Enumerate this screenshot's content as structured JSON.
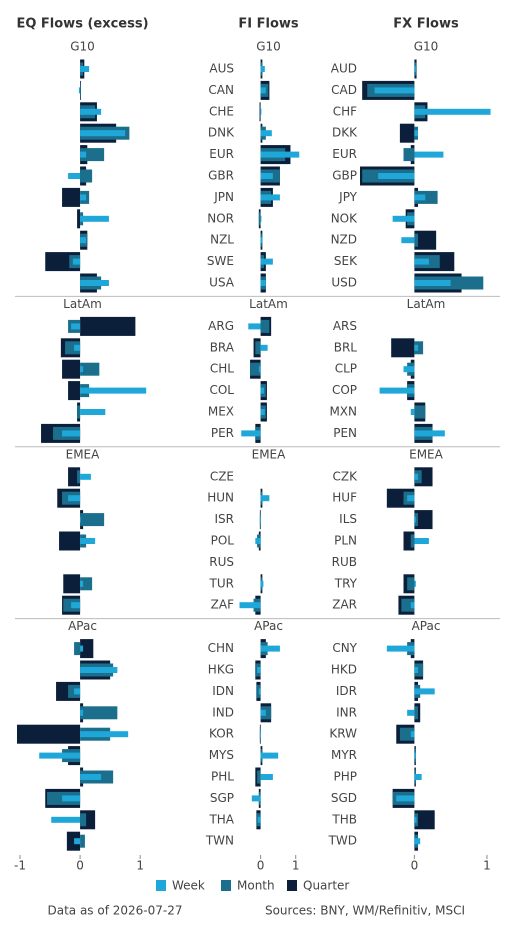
{
  "chart_data": [
    {
      "type": "bar",
      "title": "EQ Flows (excess)",
      "xlim": [
        -1.05,
        1.13
      ],
      "xticks": [
        -1,
        0,
        1
      ],
      "groups": [
        {
          "name": "G10",
          "series": [
            {
              "values": [
                0.15,
                -0.02,
                0.35,
                0.75,
                0.1,
                -0.2,
                0.1,
                0.48,
                0.1,
                -0.12,
                0.48
              ]
            },
            {
              "values": [
                0.05,
                0,
                0.25,
                0.82,
                0.4,
                0.2,
                0.15,
                0.05,
                0.12,
                -0.18,
                0.35
              ]
            },
            {
              "values": [
                0.07,
                0,
                0.28,
                0.6,
                0.12,
                0.1,
                -0.3,
                -0.05,
                0.12,
                -0.58,
                0.28
              ]
            }
          ]
        },
        {
          "name": "LatAm",
          "series": [
            {
              "values": [
                -0.15,
                -0.1,
                0.05,
                1.1,
                0.42,
                -0.3
              ]
            },
            {
              "values": [
                -0.2,
                -0.25,
                0.32,
                0.15,
                -0.05,
                -0.45
              ]
            },
            {
              "values": [
                0.92,
                -0.32,
                -0.3,
                -0.2,
                -0.05,
                -0.65
              ]
            }
          ]
        },
        {
          "name": "EMEA",
          "series": [
            {
              "values": [
                0.18,
                -0.2,
                0,
                0.25,
                null,
                0.05,
                -0.15
              ]
            },
            {
              "values": [
                -0.05,
                -0.3,
                0.4,
                0.1,
                null,
                0.2,
                -0.28
              ]
            },
            {
              "values": [
                -0.2,
                -0.38,
                0.05,
                -0.35,
                null,
                -0.28,
                -0.3
              ]
            }
          ]
        },
        {
          "name": "APac",
          "series": [
            {
              "values": [
                0.05,
                0.62,
                -0.1,
                0.05,
                0.8,
                -0.68,
                0.35,
                -0.3,
                -0.48,
                -0.1
              ]
            },
            {
              "values": [
                -0.1,
                0.55,
                -0.2,
                0.62,
                0.5,
                -0.3,
                0.55,
                -0.55,
                0.1,
                0.08
              ]
            },
            {
              "values": [
                0.22,
                0.5,
                -0.4,
                0.05,
                -1.05,
                -0.2,
                0.05,
                -0.58,
                0.25,
                -0.22
              ]
            }
          ]
        }
      ]
    },
    {
      "type": "bar",
      "title": "FI Flows",
      "xlim": [
        -0.7,
        1.15
      ],
      "xticks": [
        0,
        1
      ],
      "groups": [
        {
          "name": "G10",
          "categories": [
            "AUS",
            "CAN",
            "CHE",
            "DNK",
            "EUR",
            "GBR",
            "JPN",
            "NOR",
            "NZL",
            "SWE",
            "USA"
          ],
          "series": [
            {
              "values": [
                0.12,
                0.15,
                0,
                0.32,
                1.1,
                0.35,
                0.55,
                0,
                0.05,
                0.35,
                0.15
              ]
            },
            {
              "values": [
                0.05,
                0.22,
                -0.02,
                0.15,
                0.7,
                0.55,
                0.3,
                -0.05,
                0.05,
                0.1,
                0.15
              ]
            },
            {
              "values": [
                0.05,
                0.25,
                -0.03,
                0.05,
                0.85,
                0.55,
                0.35,
                -0.05,
                0.05,
                0.15,
                0.15
              ]
            }
          ]
        },
        {
          "name": "LatAm",
          "categories": [
            "ARG",
            "BRA",
            "CHL",
            "COL",
            "MEX",
            "PER"
          ],
          "series": [
            {
              "values": [
                -0.35,
                0.2,
                -0.05,
                0.1,
                0.12,
                -0.55
              ]
            },
            {
              "values": [
                0.25,
                -0.15,
                -0.3,
                0.15,
                0.15,
                -0.15
              ]
            },
            {
              "values": [
                0.3,
                -0.2,
                -0.3,
                0.18,
                0.18,
                -0.15
              ]
            }
          ]
        },
        {
          "name": "EMEA",
          "categories": [
            "CZE",
            "HUN",
            "ISR",
            "POL",
            "RUS",
            "TUR",
            "ZAF"
          ],
          "series": [
            {
              "values": [
                null,
                0.25,
                -0.02,
                -0.15,
                null,
                0.08,
                -0.6
              ]
            },
            {
              "values": [
                null,
                0.05,
                -0.02,
                -0.1,
                null,
                0.05,
                -0.2
              ]
            },
            {
              "values": [
                null,
                0.05,
                -0.02,
                -0.05,
                null,
                0.05,
                -0.15
              ]
            }
          ]
        },
        {
          "name": "APac",
          "categories": [
            "CHN",
            "HKG",
            "IDN",
            "IND",
            "KOR",
            "MYS",
            "PHL",
            "SGP",
            "THA",
            "TWN"
          ],
          "series": [
            {
              "values": [
                0.55,
                -0.1,
                -0.05,
                0.15,
                -0.02,
                0.5,
                0.35,
                -0.25,
                -0.08,
                null
              ]
            },
            {
              "values": [
                0.2,
                -0.15,
                -0.12,
                0.3,
                -0.02,
                0.05,
                -0.1,
                -0.05,
                -0.12,
                null
              ]
            },
            {
              "values": [
                0.15,
                -0.15,
                -0.12,
                0.3,
                -0.02,
                0.05,
                -0.15,
                -0.05,
                -0.12,
                null
              ]
            }
          ]
        }
      ]
    },
    {
      "type": "bar",
      "title": "FX Flows",
      "xlim": [
        -0.75,
        1.07
      ],
      "xticks": [
        0,
        1
      ],
      "groups": [
        {
          "name": "G10",
          "categories": [
            "AUD",
            "CAD",
            "CHF",
            "DKK",
            "EUR",
            "GBP",
            "JPY",
            "NOK",
            "NZD",
            "SEK",
            "USD"
          ],
          "series": [
            {
              "values": [
                0.02,
                -0.55,
                1.05,
                0.05,
                0.4,
                -0.5,
                0.15,
                -0.3,
                -0.18,
                0.2,
                0.5
              ]
            },
            {
              "values": [
                0.03,
                -0.65,
                0.15,
                0.05,
                -0.15,
                -0.72,
                0.32,
                -0.1,
                0.05,
                0.35,
                0.95
              ]
            },
            {
              "values": [
                0.03,
                -0.72,
                0.18,
                -0.2,
                -0.05,
                -0.75,
                0.05,
                -0.12,
                0.3,
                0.55,
                0.65
              ]
            }
          ]
        },
        {
          "name": "LatAm",
          "categories": [
            "ARS",
            "BRL",
            "CLP",
            "COP",
            "MXN",
            "PEN"
          ],
          "series": [
            {
              "values": [
                null,
                0.05,
                -0.15,
                -0.48,
                -0.05,
                0.42
              ]
            },
            {
              "values": [
                null,
                0.12,
                -0.1,
                -0.1,
                0.15,
                0.25
              ]
            },
            {
              "values": [
                null,
                -0.32,
                -0.05,
                -0.1,
                0.15,
                0.25
              ]
            }
          ]
        },
        {
          "name": "EMEA",
          "categories": [
            "CZK",
            "HUF",
            "ILS",
            "PLN",
            "RUB",
            "TRY",
            "ZAR"
          ],
          "series": [
            {
              "values": [
                0.05,
                -0.1,
                0.02,
                0.2,
                null,
                0.02,
                -0.05
              ]
            },
            {
              "values": [
                0.1,
                -0.15,
                0.05,
                -0.05,
                null,
                -0.1,
                -0.18
              ]
            },
            {
              "values": [
                0.25,
                -0.38,
                0.25,
                -0.15,
                null,
                -0.15,
                -0.22
              ]
            }
          ]
        },
        {
          "name": "APac",
          "categories": [
            "CNY",
            "HKD",
            "IDR",
            "INR",
            "KRW",
            "MYR",
            "PHP",
            "SGD",
            "THB",
            "TWD"
          ],
          "series": [
            {
              "values": [
                -0.38,
                0.05,
                0.28,
                -0.1,
                -0.05,
                0.02,
                0.1,
                -0.25,
                0.03,
                0.08
              ]
            },
            {
              "values": [
                -0.1,
                0.12,
                0.08,
                0.05,
                -0.2,
                0.02,
                0.02,
                -0.3,
                0.05,
                0.05
              ]
            },
            {
              "values": [
                -0.05,
                0.12,
                0.05,
                0.08,
                -0.25,
                0.02,
                0.02,
                -0.3,
                0.28,
                0.05
              ]
            }
          ]
        }
      ]
    }
  ],
  "legend": [
    {
      "name": "Week",
      "color": "#1fa7d9"
    },
    {
      "name": "Month",
      "color": "#1b6f8c"
    },
    {
      "name": "Quarter",
      "color": "#0b1f3a"
    }
  ],
  "footer": {
    "date": "Data as of 2026-07-27",
    "sources": "Sources:  BNY, WM/Refinitiv, MSCI"
  }
}
